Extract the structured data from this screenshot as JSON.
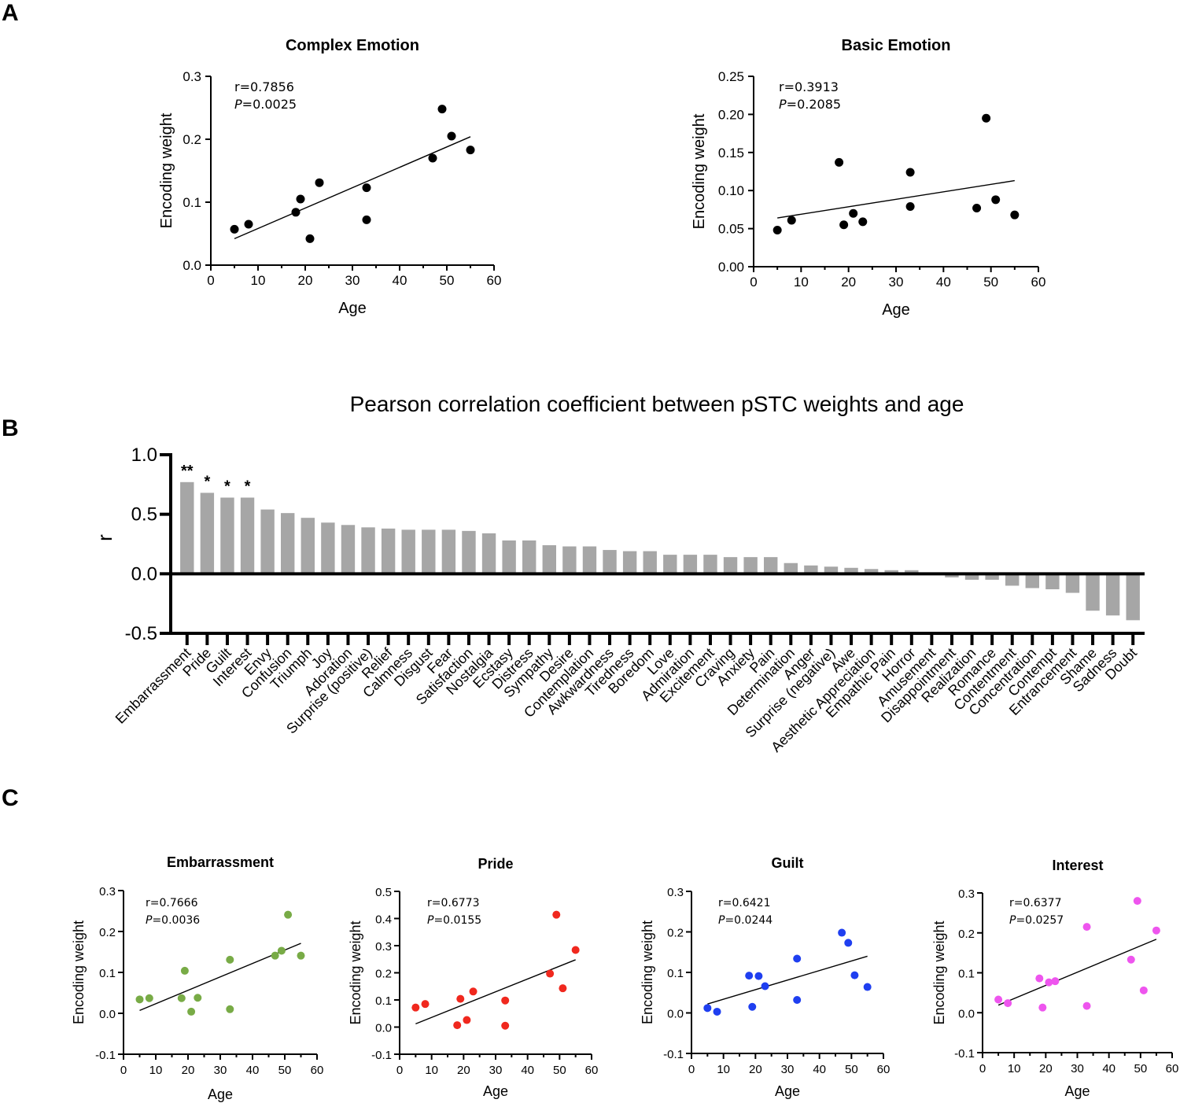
{
  "panels": {
    "A": "A",
    "B": "B",
    "C": "C"
  },
  "chart_data": [
    {
      "id": "complex",
      "type": "scatter",
      "title": "Complex Emotion",
      "xlabel": "Age",
      "ylabel": "Encoding weight",
      "xlim": [
        0,
        60
      ],
      "ylim": [
        0.0,
        0.3
      ],
      "xticks": [
        0,
        10,
        20,
        30,
        40,
        50,
        60
      ],
      "yticks": [
        0.0,
        0.1,
        0.2,
        0.3
      ],
      "ytick_labels": [
        "0.0",
        "0.1",
        "0.2",
        "0.3"
      ],
      "stats": {
        "r": "r=0.7856",
        "p_label": "P",
        "p_value": "=0.0025"
      },
      "color": "#000000",
      "x": [
        5,
        8,
        18,
        19,
        21,
        23,
        33,
        33,
        47,
        49,
        51,
        55
      ],
      "y": [
        0.057,
        0.065,
        0.084,
        0.105,
        0.042,
        0.131,
        0.123,
        0.072,
        0.17,
        0.248,
        0.205,
        0.183
      ],
      "fit": {
        "x": [
          5,
          55
        ],
        "y": [
          0.042,
          0.204
        ]
      }
    },
    {
      "id": "basic",
      "type": "scatter",
      "title": "Basic Emotion",
      "xlabel": "Age",
      "ylabel": "Encoding weight",
      "xlim": [
        0,
        60
      ],
      "ylim": [
        0.0,
        0.25
      ],
      "xticks": [
        0,
        10,
        20,
        30,
        40,
        50,
        60
      ],
      "yticks": [
        0.0,
        0.05,
        0.1,
        0.15,
        0.2,
        0.25
      ],
      "ytick_labels": [
        "0.00",
        "0.05",
        "0.10",
        "0.15",
        "0.20",
        "0.25"
      ],
      "stats": {
        "r": "r=0.3913",
        "p_label": "P",
        "p_value": "=0.2085"
      },
      "color": "#000000",
      "x": [
        5,
        8,
        18,
        19,
        21,
        23,
        33,
        33,
        47,
        49,
        51,
        55
      ],
      "y": [
        0.048,
        0.061,
        0.137,
        0.055,
        0.07,
        0.059,
        0.124,
        0.079,
        0.077,
        0.195,
        0.088,
        0.068
      ],
      "fit": {
        "x": [
          5,
          55
        ],
        "y": [
          0.064,
          0.113
        ]
      }
    },
    {
      "id": "pearson",
      "type": "bar",
      "title": "Pearson correlation coefficient between pSTC weights and age",
      "xlabel": "",
      "ylabel": "r",
      "ylim": [
        -0.5,
        1.0
      ],
      "yticks": [
        -0.5,
        0.0,
        0.5,
        1.0
      ],
      "ytick_labels": [
        "-0.5",
        "0.0",
        "0.5",
        "1.0"
      ],
      "color": "#a6a6a6",
      "categories": [
        "Embarrassment",
        "Pride",
        "Guilt",
        "Interest",
        "Envy",
        "Confusion",
        "Triumph",
        "Joy",
        "Adoration",
        "Surprise (positive)",
        "Relief",
        "Calmness",
        "Disgust",
        "Fear",
        "Satisfaction",
        "Nostalgia",
        "Ecstasy",
        "Distress",
        "Sympathy",
        "Desire",
        "Contemplation",
        "Awkwardness",
        "Tiredness",
        "Boredom",
        "Love",
        "Admiration",
        "Excitement",
        "Craving",
        "Anxiety",
        "Pain",
        "Determination",
        "Anger",
        "Surprise (negative)",
        "Awe",
        "Aesthetic Appreciation",
        "Empathic Pain",
        "Horror",
        "Amusement",
        "Disappointment",
        "Realization",
        "Romance",
        "Contentment",
        "Concentration",
        "Contempt",
        "Entrancement",
        "Shame",
        "Sadness",
        "Doubt"
      ],
      "values": [
        0.77,
        0.68,
        0.64,
        0.64,
        0.54,
        0.51,
        0.47,
        0.43,
        0.41,
        0.39,
        0.38,
        0.37,
        0.37,
        0.37,
        0.36,
        0.34,
        0.28,
        0.28,
        0.24,
        0.23,
        0.23,
        0.2,
        0.19,
        0.19,
        0.16,
        0.16,
        0.16,
        0.14,
        0.14,
        0.14,
        0.09,
        0.07,
        0.06,
        0.05,
        0.04,
        0.03,
        0.03,
        0.0,
        -0.03,
        -0.05,
        -0.05,
        -0.1,
        -0.12,
        -0.13,
        -0.16,
        -0.31,
        -0.35,
        -0.39
      ],
      "significance": [
        "**",
        "*",
        "*",
        "*"
      ]
    },
    {
      "id": "embarrassment",
      "type": "scatter",
      "title": "Embarrassment",
      "xlabel": "Age",
      "ylabel": "Encoding weight",
      "xlim": [
        0,
        60
      ],
      "ylim": [
        -0.1,
        0.3
      ],
      "xticks": [
        0,
        10,
        20,
        30,
        40,
        50,
        60
      ],
      "yticks": [
        -0.1,
        0.0,
        0.1,
        0.2,
        0.3
      ],
      "ytick_labels": [
        "-0.1",
        "0.0",
        "0.1",
        "0.2",
        "0.3"
      ],
      "stats": {
        "r": "r=0.7666",
        "p_label": "P",
        "p_value": "=0.0036"
      },
      "color": "#78ab46",
      "x": [
        5,
        8,
        18,
        19,
        21,
        23,
        33,
        33,
        47,
        49,
        51,
        55
      ],
      "y": [
        0.034,
        0.037,
        0.037,
        0.104,
        0.004,
        0.038,
        0.131,
        0.01,
        0.141,
        0.153,
        0.241,
        0.141
      ],
      "fit": {
        "x": [
          5,
          55
        ],
        "y": [
          0.007,
          0.171
        ]
      }
    },
    {
      "id": "pride",
      "type": "scatter",
      "title": "Pride",
      "xlabel": "Age",
      "ylabel": "Encoding weight",
      "xlim": [
        0,
        60
      ],
      "ylim": [
        -0.1,
        0.5
      ],
      "xticks": [
        0,
        10,
        20,
        30,
        40,
        50,
        60
      ],
      "yticks": [
        -0.1,
        0.0,
        0.1,
        0.2,
        0.3,
        0.4,
        0.5
      ],
      "ytick_labels": [
        "-0.1",
        "0.0",
        "0.1",
        "0.2",
        "0.3",
        "0.4",
        "0.5"
      ],
      "stats": {
        "r": "r=0.6773",
        "p_label": "P",
        "p_value": "=0.0155"
      },
      "color": "#f0281e",
      "x": [
        5,
        8,
        18,
        19,
        21,
        23,
        33,
        33,
        47,
        49,
        51,
        55
      ],
      "y": [
        0.072,
        0.085,
        0.007,
        0.104,
        0.026,
        0.131,
        0.098,
        0.005,
        0.197,
        0.414,
        0.143,
        0.284
      ],
      "fit": {
        "x": [
          5,
          55
        ],
        "y": [
          0.012,
          0.248
        ]
      }
    },
    {
      "id": "guilt",
      "type": "scatter",
      "title": "Guilt",
      "xlabel": "Age",
      "ylabel": "Encoding weight",
      "xlim": [
        0,
        60
      ],
      "ylim": [
        -0.1,
        0.3
      ],
      "xticks": [
        0,
        10,
        20,
        30,
        40,
        50,
        60
      ],
      "yticks": [
        -0.1,
        0.0,
        0.1,
        0.2,
        0.3
      ],
      "ytick_labels": [
        "-0.1",
        "0.0",
        "0.1",
        "0.2",
        "0.3"
      ],
      "stats": {
        "r": "r=0.6421",
        "p_label": "P",
        "p_value": "=0.0244"
      },
      "color": "#1f3ff0",
      "x": [
        5,
        8,
        18,
        19,
        21,
        23,
        33,
        33,
        47,
        49,
        51,
        55
      ],
      "y": [
        0.012,
        0.003,
        0.092,
        0.015,
        0.091,
        0.066,
        0.134,
        0.032,
        0.198,
        0.173,
        0.093,
        0.064
      ],
      "fit": {
        "x": [
          5,
          55
        ],
        "y": [
          0.022,
          0.14
        ]
      }
    },
    {
      "id": "interest",
      "type": "scatter",
      "title": "Interest",
      "xlabel": "Age",
      "ylabel": "Encoding weight",
      "xlim": [
        0,
        60
      ],
      "ylim": [
        -0.1,
        0.3
      ],
      "xticks": [
        0,
        10,
        20,
        30,
        40,
        50,
        60
      ],
      "yticks": [
        -0.1,
        0.0,
        0.1,
        0.2,
        0.3
      ],
      "ytick_labels": [
        "-0.1",
        "0.0",
        "0.1",
        "0.2",
        "0.3"
      ],
      "stats": {
        "r": "r=0.6377",
        "p_label": "P",
        "p_value": "=0.0257"
      },
      "color": "#ee55ee",
      "x": [
        5,
        8,
        18,
        19,
        21,
        23,
        33,
        33,
        47,
        49,
        51,
        55
      ],
      "y": [
        0.033,
        0.024,
        0.086,
        0.013,
        0.076,
        0.079,
        0.215,
        0.017,
        0.133,
        0.28,
        0.056,
        0.206
      ],
      "fit": {
        "x": [
          5,
          55
        ],
        "y": [
          0.019,
          0.184
        ]
      }
    }
  ]
}
